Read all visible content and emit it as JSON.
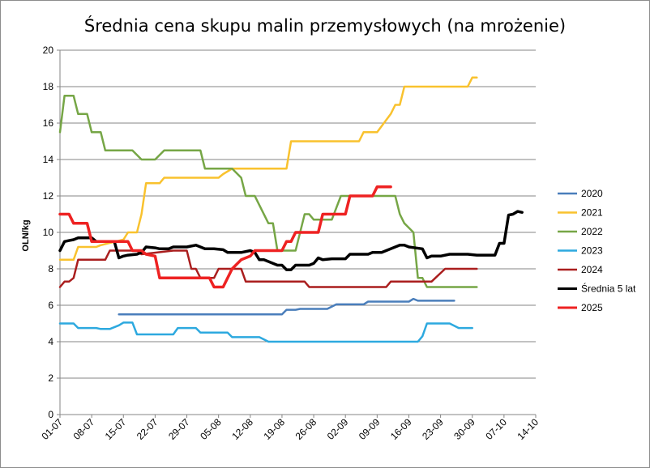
{
  "chart_data": {
    "type": "line",
    "title": "Średnia cena skupu malin przemysłowych (na mrożenie)",
    "ylabel": "OLN/kg",
    "xlabel": "",
    "ylim": [
      0,
      20
    ],
    "yticks": [
      0,
      2,
      4,
      6,
      8,
      10,
      12,
      14,
      16,
      18,
      20
    ],
    "grid": true,
    "legend": "right",
    "categories": [
      "01-07",
      "08-07",
      "15-07",
      "22-07",
      "29-07",
      "05-08",
      "12-08",
      "19-08",
      "26-08",
      "02-09",
      "09-09",
      "16-09",
      "23-09",
      "30-09",
      "07-10",
      "14-10"
    ],
    "series": [
      {
        "name": "2020",
        "color": "#4a7ebb",
        "points": [
          [
            13,
            5.5
          ],
          [
            49,
            5.5
          ],
          [
            50,
            5.75
          ],
          [
            52,
            5.75
          ],
          [
            53,
            5.8
          ],
          [
            59,
            5.8
          ],
          [
            61,
            6.05
          ],
          [
            67,
            6.05
          ],
          [
            68,
            6.2
          ],
          [
            77,
            6.2
          ],
          [
            78,
            6.35
          ],
          [
            79,
            6.25
          ],
          [
            87,
            6.25
          ]
        ]
      },
      {
        "name": "2021",
        "color": "#f9c22e",
        "points": [
          [
            0,
            8.5
          ],
          [
            3,
            8.5
          ],
          [
            4,
            9.2
          ],
          [
            8,
            9.2
          ],
          [
            9,
            9.3
          ],
          [
            14,
            9.6
          ],
          [
            15,
            10
          ],
          [
            17,
            10
          ],
          [
            18,
            11
          ],
          [
            19,
            12.7
          ],
          [
            22,
            12.7
          ],
          [
            23,
            13
          ],
          [
            35,
            13
          ],
          [
            36,
            13.2
          ],
          [
            38,
            13.5
          ],
          [
            45,
            13.5
          ],
          [
            46,
            13.5
          ],
          [
            50,
            13.5
          ],
          [
            51,
            15
          ],
          [
            66,
            15
          ],
          [
            67,
            15.5
          ],
          [
            70,
            15.5
          ],
          [
            73,
            16.5
          ],
          [
            74,
            17
          ],
          [
            75,
            17
          ],
          [
            76,
            18
          ],
          [
            90,
            18
          ],
          [
            91,
            18.5
          ],
          [
            92,
            18.5
          ]
        ]
      },
      {
        "name": "2022",
        "color": "#76a646",
        "points": [
          [
            0,
            15.5
          ],
          [
            1,
            17.5
          ],
          [
            3,
            17.5
          ],
          [
            4,
            16.5
          ],
          [
            6,
            16.5
          ],
          [
            7,
            15.5
          ],
          [
            9,
            15.5
          ],
          [
            10,
            14.5
          ],
          [
            16,
            14.5
          ],
          [
            18,
            14
          ],
          [
            21,
            14
          ],
          [
            23,
            14.5
          ],
          [
            30,
            14.5
          ],
          [
            31,
            14.5
          ],
          [
            32,
            13.5
          ],
          [
            37,
            13.5
          ],
          [
            38,
            13.5
          ],
          [
            40,
            13
          ],
          [
            41,
            12
          ],
          [
            43,
            12
          ],
          [
            44,
            11.5
          ],
          [
            46,
            10.5
          ],
          [
            47,
            10.5
          ],
          [
            48,
            9
          ],
          [
            52,
            9
          ],
          [
            54,
            11
          ],
          [
            55,
            11
          ],
          [
            56,
            10.7
          ],
          [
            60,
            10.7
          ],
          [
            62,
            12
          ],
          [
            74,
            12
          ],
          [
            75,
            11
          ],
          [
            76,
            10.5
          ],
          [
            78,
            10
          ],
          [
            79,
            7.5
          ],
          [
            80,
            7.5
          ],
          [
            81,
            7
          ],
          [
            92,
            7
          ]
        ]
      },
      {
        "name": "2023",
        "color": "#2da9df",
        "points": [
          [
            0,
            5
          ],
          [
            3,
            5
          ],
          [
            4,
            4.75
          ],
          [
            8,
            4.75
          ],
          [
            9,
            4.7
          ],
          [
            11,
            4.7
          ],
          [
            13,
            4.9
          ],
          [
            14,
            5.05
          ],
          [
            16,
            5.05
          ],
          [
            17,
            4.4
          ],
          [
            23,
            4.4
          ],
          [
            24,
            4.4
          ],
          [
            25,
            4.4
          ],
          [
            26,
            4.75
          ],
          [
            30,
            4.75
          ],
          [
            31,
            4.5
          ],
          [
            37,
            4.5
          ],
          [
            38,
            4.25
          ],
          [
            43,
            4.25
          ],
          [
            44,
            4.25
          ],
          [
            46,
            4
          ],
          [
            79,
            4
          ],
          [
            80,
            4.3
          ],
          [
            81,
            5
          ],
          [
            86,
            5
          ],
          [
            88,
            4.75
          ],
          [
            91,
            4.75
          ]
        ]
      },
      {
        "name": "2024",
        "color": "#aa1e1e",
        "points": [
          [
            0,
            7
          ],
          [
            1,
            7.3
          ],
          [
            2,
            7.3
          ],
          [
            3,
            7.5
          ],
          [
            4,
            8.5
          ],
          [
            8,
            8.5
          ],
          [
            10,
            8.5
          ],
          [
            11,
            9
          ],
          [
            16,
            9
          ],
          [
            17,
            9
          ],
          [
            18,
            8.8
          ],
          [
            25,
            9
          ],
          [
            28,
            9
          ],
          [
            29,
            8
          ],
          [
            30,
            8
          ],
          [
            31,
            7.5
          ],
          [
            34,
            7.5
          ],
          [
            35,
            8
          ],
          [
            40,
            8
          ],
          [
            41,
            7.3
          ],
          [
            54,
            7.3
          ],
          [
            55,
            7
          ],
          [
            72,
            7
          ],
          [
            73,
            7.3
          ],
          [
            77,
            7.3
          ],
          [
            82,
            7.3
          ],
          [
            85,
            8
          ],
          [
            92,
            8
          ]
        ]
      },
      {
        "name": "Średnia 5 lat",
        "color": "#000000",
        "points": [
          [
            0,
            9
          ],
          [
            1,
            9.5
          ],
          [
            2,
            9.55
          ],
          [
            3,
            9.6
          ],
          [
            4,
            9.7
          ],
          [
            7,
            9.7
          ],
          [
            8,
            9.5
          ],
          [
            12,
            9.5
          ],
          [
            13,
            8.6
          ],
          [
            14,
            8.7
          ],
          [
            15,
            8.75
          ],
          [
            17,
            8.8
          ],
          [
            18,
            8.9
          ],
          [
            19,
            9.2
          ],
          [
            21,
            9.15
          ],
          [
            22,
            9.1
          ],
          [
            24,
            9.1
          ],
          [
            25,
            9.2
          ],
          [
            28,
            9.2
          ],
          [
            29,
            9.25
          ],
          [
            30,
            9.3
          ],
          [
            31,
            9.2
          ],
          [
            32,
            9.1
          ],
          [
            34,
            9.1
          ],
          [
            36,
            9.05
          ],
          [
            37,
            8.9
          ],
          [
            40,
            8.9
          ],
          [
            42,
            9
          ],
          [
            43,
            8.9
          ],
          [
            44,
            8.5
          ],
          [
            45,
            8.5
          ],
          [
            46,
            8.4
          ],
          [
            48,
            8.2
          ],
          [
            49,
            8.2
          ],
          [
            50,
            7.95
          ],
          [
            51,
            7.95
          ],
          [
            52,
            8.2
          ],
          [
            55,
            8.2
          ],
          [
            56,
            8.3
          ],
          [
            57,
            8.6
          ],
          [
            58,
            8.5
          ],
          [
            60,
            8.55
          ],
          [
            63,
            8.55
          ],
          [
            64,
            8.8
          ],
          [
            68,
            8.8
          ],
          [
            69,
            8.9
          ],
          [
            71,
            8.9
          ],
          [
            72,
            9
          ],
          [
            73,
            9.1
          ],
          [
            75,
            9.3
          ],
          [
            76,
            9.3
          ],
          [
            77,
            9.2
          ],
          [
            80,
            9.1
          ],
          [
            81,
            8.6
          ],
          [
            82,
            8.7
          ],
          [
            84,
            8.7
          ],
          [
            86,
            8.8
          ],
          [
            90,
            8.8
          ],
          [
            92,
            8.75
          ],
          [
            96,
            8.75
          ],
          [
            97,
            9.4
          ],
          [
            98,
            9.4
          ],
          [
            99,
            10.95
          ],
          [
            100,
            11
          ],
          [
            101,
            11.15
          ],
          [
            102,
            11.1
          ]
        ]
      },
      {
        "name": "2025",
        "color": "#ee2222",
        "points": [
          [
            0,
            11
          ],
          [
            2,
            11
          ],
          [
            3,
            10.5
          ],
          [
            6,
            10.5
          ],
          [
            7,
            9.5
          ],
          [
            12,
            9.5
          ],
          [
            15,
            9.5
          ],
          [
            16,
            9
          ],
          [
            18,
            9
          ],
          [
            19,
            8.8
          ],
          [
            21,
            8.7
          ],
          [
            22,
            7.5
          ],
          [
            30,
            7.5
          ],
          [
            33,
            7.5
          ],
          [
            34,
            7
          ],
          [
            36,
            7
          ],
          [
            38,
            8
          ],
          [
            40,
            8.5
          ],
          [
            42,
            8.7
          ],
          [
            43,
            9
          ],
          [
            45,
            9
          ],
          [
            49,
            9
          ],
          [
            50,
            9.5
          ],
          [
            51,
            9.5
          ],
          [
            52,
            10
          ],
          [
            57,
            10
          ],
          [
            58,
            11
          ],
          [
            63,
            11
          ],
          [
            64,
            12
          ],
          [
            69,
            12
          ],
          [
            70,
            12.5
          ],
          [
            73,
            12.5
          ]
        ]
      }
    ]
  }
}
